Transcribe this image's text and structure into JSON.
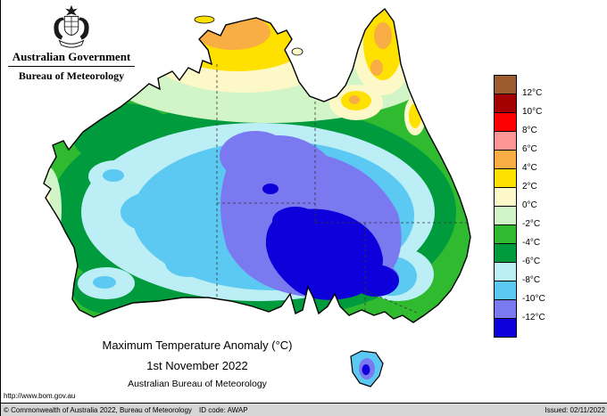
{
  "header": {
    "government_label": "Australian Government",
    "bureau_label": "Bureau of Meteorology"
  },
  "map_block": {
    "title": "Maximum Temperature Anomaly (°C)",
    "date": "1st November 2022",
    "source": "Australian Bureau of Meteorology",
    "url": "http://www.bom.gov.au"
  },
  "legend": {
    "unit": "°C",
    "labels": [
      "12°C",
      "10°C",
      "8°C",
      "6°C",
      "4°C",
      "2°C",
      "0°C",
      "-2°C",
      "-4°C",
      "-6°C",
      "-8°C",
      "-10°C",
      "-12°C"
    ],
    "cells": [
      {
        "range": "> 12",
        "color": "#9d5c2e"
      },
      {
        "range": "10 to 12",
        "color": "#a40000"
      },
      {
        "range": "8 to 10",
        "color": "#ff0000"
      },
      {
        "range": "6 to 8",
        "color": "#ff9696"
      },
      {
        "range": "4 to 6",
        "color": "#f9ad45"
      },
      {
        "range": "2 to 4",
        "color": "#ffe100"
      },
      {
        "range": "0 to 2",
        "color": "#fdf8c8"
      },
      {
        "range": "-2 to 0",
        "color": "#d2f5c8"
      },
      {
        "range": "-4 to -2",
        "color": "#30ba30"
      },
      {
        "range": "-6 to -4",
        "color": "#009b3d"
      },
      {
        "range": "-8 to -6",
        "color": "#bceef6"
      },
      {
        "range": "-10 to -8",
        "color": "#5cc9f2"
      },
      {
        "range": "-12 to -10",
        "color": "#7b79ef"
      },
      {
        "range": "< -12",
        "color": "#0d00da"
      }
    ]
  },
  "footer": {
    "copyright": "© Commonwealth of Australia 2022, Bureau of Meteorology",
    "id_code": "ID code: AWAP",
    "issued": "Issued: 02/11/2022"
  },
  "chart_data": {
    "type": "heatmap",
    "title": "Maximum Temperature Anomaly (°C)",
    "region": "Australia",
    "date": "1st November 2022",
    "unit": "°C",
    "scale_boundaries": [
      12,
      10,
      8,
      6,
      4,
      2,
      0,
      -2,
      -4,
      -6,
      -8,
      -10,
      -12
    ],
    "notable_features": [
      "Far north (Top End NT, Cape York QLD): positive anomalies up to +4 to +6 °C",
      "Most of the continent: negative anomalies",
      "Central / south-eastern interior (SA-NSW-VIC border region): below -12 °C",
      "Coastal fringes: -2 to -6 °C",
      "Tasmania: roughly -8 to -12 °C"
    ]
  }
}
